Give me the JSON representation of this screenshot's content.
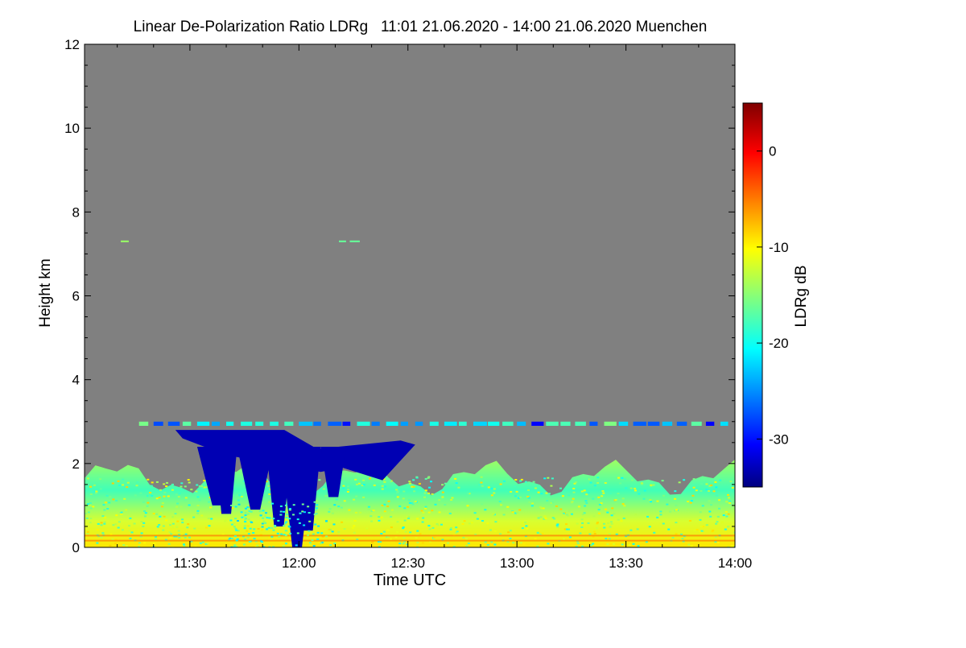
{
  "chart_data": {
    "type": "heatmap",
    "title": "Linear De-Polarization Ratio LDRg   11:01 21.06.2020 - 14:00 21.06.2020 Muenchen",
    "xlabel": "Time UTC",
    "ylabel": "Height km",
    "x_unit": "minutes since 00:00 UTC",
    "xlim": [
      661,
      840
    ],
    "ylim": [
      0,
      12
    ],
    "x_ticks": [
      {
        "value": 690,
        "label": "11:30"
      },
      {
        "value": 720,
        "label": "12:00"
      },
      {
        "value": 750,
        "label": "12:30"
      },
      {
        "value": 780,
        "label": "13:00"
      },
      {
        "value": 810,
        "label": "13:30"
      },
      {
        "value": 840,
        "label": "14:00"
      }
    ],
    "y_ticks": [
      {
        "value": 0,
        "label": "0"
      },
      {
        "value": 2,
        "label": "2"
      },
      {
        "value": 4,
        "label": "4"
      },
      {
        "value": 6,
        "label": "6"
      },
      {
        "value": 8,
        "label": "8"
      },
      {
        "value": 10,
        "label": "10"
      },
      {
        "value": 12,
        "label": "12"
      }
    ],
    "colorbar": {
      "label": "LDRg dB",
      "range": [
        -35,
        5
      ],
      "colormap": "jet",
      "ticks": [
        {
          "value": 0,
          "label": "0"
        },
        {
          "value": -10,
          "label": "-10"
        },
        {
          "value": -20,
          "label": "-20"
        },
        {
          "value": -30,
          "label": "-30"
        }
      ]
    },
    "no_data_color": "#808080",
    "features": [
      {
        "name": "boundary-layer-aerosol",
        "x_range": [
          661,
          840
        ],
        "y_range": [
          0,
          2.0
        ],
        "ldr_db_range": [
          -20,
          -8
        ]
      },
      {
        "name": "ice-fall-streaks",
        "x_range": [
          688,
          750
        ],
        "y_range": [
          0,
          2.8
        ],
        "ldr_db": -33
      },
      {
        "name": "mid-level-cloud-layer",
        "x_range": [
          676,
          840
        ],
        "y_range": [
          2.9,
          3.0
        ],
        "ldr_db_range": [
          -30,
          -15
        ]
      },
      {
        "name": "thin-layer-7km",
        "x_range": [
          671,
          674
        ],
        "y_range": [
          7.28,
          7.32
        ],
        "ldr_db": -14
      },
      {
        "name": "thin-layer-7km-b",
        "x_range": [
          731,
          737
        ],
        "y_range": [
          7.28,
          7.32
        ],
        "ldr_db": -16
      }
    ]
  }
}
